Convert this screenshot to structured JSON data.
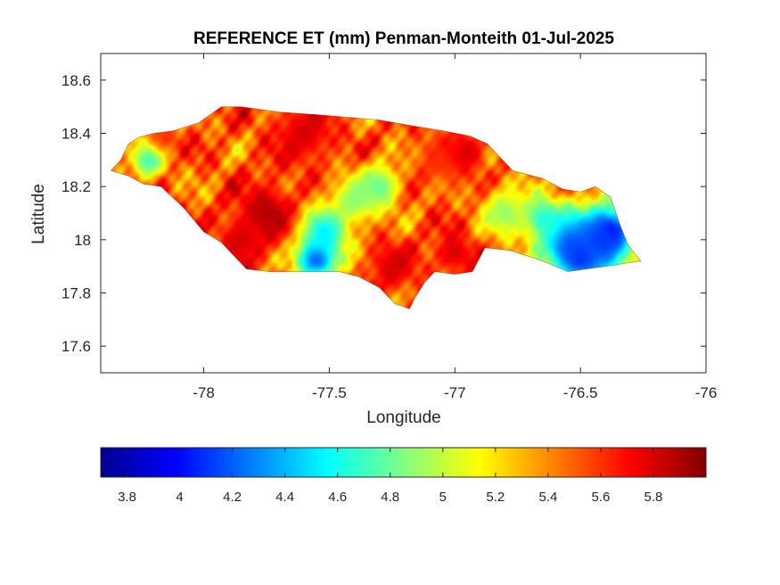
{
  "title": "REFERENCE ET (mm) Penman-Monteith 01-Jul-2025",
  "xlabel": "Longitude",
  "ylabel": "Latitude",
  "xlim": [
    -78.41,
    -76
  ],
  "ylim": [
    17.5,
    18.7
  ],
  "xticks": [
    {
      "v": -78,
      "label": "-78"
    },
    {
      "v": -77.5,
      "label": "-77.5"
    },
    {
      "v": -77,
      "label": "-77"
    },
    {
      "v": -76.5,
      "label": "-76.5"
    },
    {
      "v": -76,
      "label": "-76"
    }
  ],
  "yticks": [
    {
      "v": 17.6,
      "label": "17.6"
    },
    {
      "v": 17.8,
      "label": "17.8"
    },
    {
      "v": 18,
      "label": "18"
    },
    {
      "v": 18.2,
      "label": "18.2"
    },
    {
      "v": 18.4,
      "label": "18.4"
    },
    {
      "v": 18.6,
      "label": "18.6"
    }
  ],
  "colorbar": {
    "range": [
      3.7,
      6.0
    ],
    "colormap": "jet",
    "ticks": [
      {
        "v": 3.8,
        "label": "3.8"
      },
      {
        "v": 4.0,
        "label": "4"
      },
      {
        "v": 4.2,
        "label": "4.2"
      },
      {
        "v": 4.4,
        "label": "4.4"
      },
      {
        "v": 4.6,
        "label": "4.6"
      },
      {
        "v": 4.8,
        "label": "4.8"
      },
      {
        "v": 5.0,
        "label": "5"
      },
      {
        "v": 5.2,
        "label": "5.2"
      },
      {
        "v": 5.4,
        "label": "5.4"
      },
      {
        "v": 5.6,
        "label": "5.6"
      },
      {
        "v": 5.8,
        "label": "5.8"
      }
    ]
  },
  "map_outline": [
    [
      -78.37,
      18.26
    ],
    [
      -78.33,
      18.3
    ],
    [
      -78.3,
      18.36
    ],
    [
      -78.26,
      18.385
    ],
    [
      -78.2,
      18.4
    ],
    [
      -78.12,
      18.41
    ],
    [
      -78.02,
      18.44
    ],
    [
      -77.93,
      18.5
    ],
    [
      -77.85,
      18.5
    ],
    [
      -77.7,
      18.48
    ],
    [
      -77.55,
      18.47
    ],
    [
      -77.42,
      18.46
    ],
    [
      -77.3,
      18.45
    ],
    [
      -77.18,
      18.43
    ],
    [
      -77.05,
      18.41
    ],
    [
      -76.94,
      18.39
    ],
    [
      -76.87,
      18.36
    ],
    [
      -76.84,
      18.33
    ],
    [
      -76.77,
      18.26
    ],
    [
      -76.65,
      18.23
    ],
    [
      -76.57,
      18.19
    ],
    [
      -76.5,
      18.18
    ],
    [
      -76.44,
      18.2
    ],
    [
      -76.38,
      18.16
    ],
    [
      -76.34,
      18.05
    ],
    [
      -76.31,
      17.98
    ],
    [
      -76.26,
      17.92
    ],
    [
      -76.4,
      17.9
    ],
    [
      -76.55,
      17.88
    ],
    [
      -76.65,
      17.92
    ],
    [
      -76.78,
      17.96
    ],
    [
      -76.88,
      17.97
    ],
    [
      -76.93,
      17.88
    ],
    [
      -77.0,
      17.87
    ],
    [
      -77.08,
      17.88
    ],
    [
      -77.12,
      17.84
    ],
    [
      -77.16,
      17.78
    ],
    [
      -77.18,
      17.74
    ],
    [
      -77.24,
      17.76
    ],
    [
      -77.3,
      17.82
    ],
    [
      -77.38,
      17.86
    ],
    [
      -77.46,
      17.88
    ],
    [
      -77.56,
      17.88
    ],
    [
      -77.66,
      17.88
    ],
    [
      -77.74,
      17.88
    ],
    [
      -77.83,
      17.89
    ],
    [
      -77.93,
      17.99
    ],
    [
      -78.0,
      18.03
    ],
    [
      -78.08,
      18.12
    ],
    [
      -78.17,
      18.2
    ],
    [
      -78.24,
      18.21
    ],
    [
      -78.3,
      18.24
    ],
    [
      -78.37,
      18.26
    ]
  ],
  "et_field": {
    "base": 5.5,
    "features": [
      {
        "lon": -76.38,
        "lat": 18.03,
        "value": 3.8,
        "r": 0.05
      },
      {
        "lon": -76.42,
        "lat": 18.0,
        "value": 4.1,
        "r": 0.09
      },
      {
        "lon": -76.55,
        "lat": 17.99,
        "value": 4.2,
        "r": 0.08
      },
      {
        "lon": -76.5,
        "lat": 17.93,
        "value": 4.1,
        "r": 0.06
      },
      {
        "lon": -76.65,
        "lat": 18.08,
        "value": 4.6,
        "r": 0.06
      },
      {
        "lon": -76.8,
        "lat": 18.1,
        "value": 4.9,
        "r": 0.07
      },
      {
        "lon": -77.55,
        "lat": 17.93,
        "value": 4.1,
        "r": 0.06
      },
      {
        "lon": -77.52,
        "lat": 18.03,
        "value": 4.5,
        "r": 0.07
      },
      {
        "lon": -77.4,
        "lat": 18.15,
        "value": 4.9,
        "r": 0.07
      },
      {
        "lon": -77.3,
        "lat": 18.2,
        "value": 4.8,
        "r": 0.06
      },
      {
        "lon": -78.22,
        "lat": 18.3,
        "value": 4.7,
        "r": 0.05
      },
      {
        "lon": -77.75,
        "lat": 18.1,
        "value": 5.9,
        "r": 0.08
      },
      {
        "lon": -77.85,
        "lat": 18.0,
        "value": 5.8,
        "r": 0.07
      },
      {
        "lon": -77.6,
        "lat": 18.4,
        "value": 5.8,
        "r": 0.09
      },
      {
        "lon": -77.25,
        "lat": 17.9,
        "value": 5.8,
        "r": 0.07
      },
      {
        "lon": -77.0,
        "lat": 17.95,
        "value": 5.8,
        "r": 0.06
      },
      {
        "lon": -77.05,
        "lat": 18.3,
        "value": 5.6,
        "r": 0.08
      },
      {
        "lon": -76.95,
        "lat": 18.33,
        "value": 5.8,
        "r": 0.05
      },
      {
        "lon": -78.15,
        "lat": 18.38,
        "value": 5.6,
        "r": 0.04
      }
    ]
  }
}
